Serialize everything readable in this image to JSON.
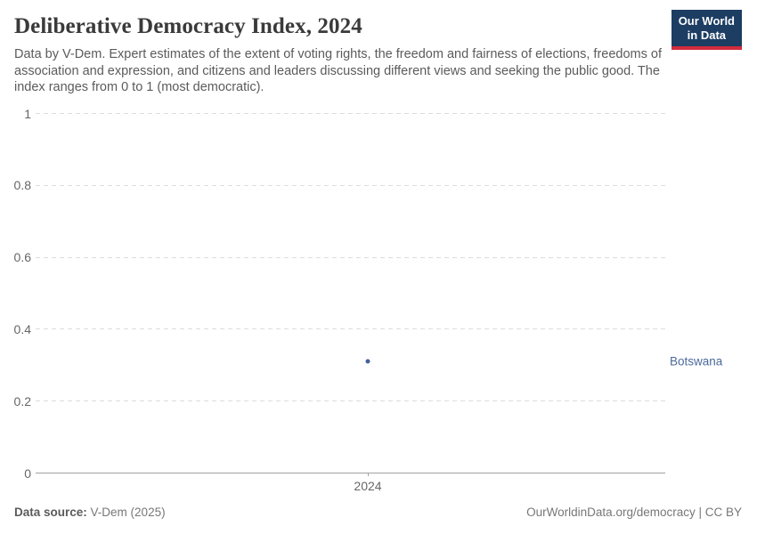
{
  "header": {
    "title": "Deliberative Democracy Index, 2024",
    "subtitle": "Data by V-Dem. Expert estimates of the extent of voting rights, the freedom and fairness of elections, freedoms of association and expression, and citizens and leaders discussing different views and seeking the public good. The index ranges from 0 to 1 (most democratic).",
    "logo": {
      "line1": "Our World",
      "line2": "in Data",
      "bg_color": "#1d3d63",
      "accent_color": "#d42b3d"
    }
  },
  "chart_data": {
    "type": "scatter",
    "title": "Deliberative Democracy Index, 2024",
    "x": [
      2024
    ],
    "series": [
      {
        "name": "Botswana",
        "values": [
          0.31
        ],
        "color": "#4c6a9c",
        "point_color": "#44619b"
      }
    ],
    "xlabel": "",
    "ylabel": "",
    "ylim": [
      0,
      1
    ],
    "yticks": [
      0,
      0.2,
      0.4,
      0.6,
      0.8,
      1
    ],
    "ytick_labels": [
      "0",
      "0.2",
      "0.4",
      "0.6",
      "0.8",
      "1"
    ],
    "xtick_labels": [
      "2024"
    ],
    "grid": "horizontal-dashed",
    "legend_position": "entity-label-right"
  },
  "footer": {
    "source_label": "Data source:",
    "source_value": "V-Dem (2025)",
    "credit": "OurWorldinData.org/democracy | CC BY"
  }
}
